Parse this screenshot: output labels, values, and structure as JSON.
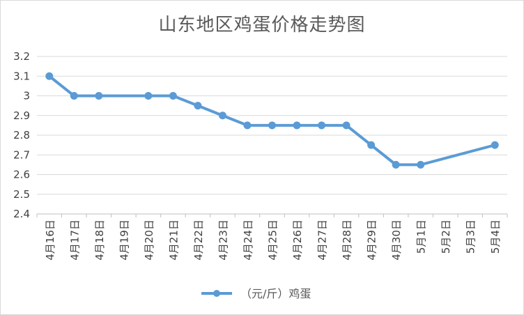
{
  "chart_data": {
    "type": "line",
    "title": "山东地区鸡蛋价格走势图",
    "xlabel": "",
    "ylabel": "",
    "categories": [
      "4月16日",
      "4月17日",
      "4月18日",
      "4月19日",
      "4月20日",
      "4月21日",
      "4月22日",
      "4月23日",
      "4月24日",
      "4月25日",
      "4月26日",
      "4月27日",
      "4月28日",
      "4月29日",
      "4月30日",
      "5月1日",
      "5月2日",
      "5月3日",
      "5月4日"
    ],
    "series": [
      {
        "name": "（元/斤）鸡蛋",
        "values": [
          3.1,
          3.0,
          3.0,
          null,
          3.0,
          3.0,
          2.95,
          2.9,
          2.85,
          2.85,
          2.85,
          2.85,
          2.85,
          2.75,
          2.65,
          2.65,
          null,
          null,
          2.75
        ],
        "color": "#5b9bd5"
      }
    ],
    "ylim": [
      2.4,
      3.2
    ],
    "yticks": [
      "2.4",
      "2.5",
      "2.6",
      "2.7",
      "2.8",
      "2.9",
      "3",
      "3.1",
      "3.2"
    ],
    "grid": true,
    "legend_position": "bottom"
  }
}
